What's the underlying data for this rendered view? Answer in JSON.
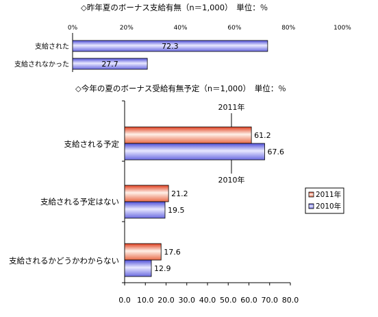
{
  "chart_data": [
    {
      "type": "bar",
      "orientation": "horizontal",
      "title": "◇昨年夏のボーナス支給有無（n＝1,000）　単位：％",
      "categories": [
        "支給された",
        "支給されなかった"
      ],
      "values": [
        72.3,
        27.7
      ],
      "xlim": [
        0,
        100
      ],
      "x_ticks": [
        "0%",
        "20%",
        "40%",
        "60%",
        "80%",
        "100%"
      ],
      "tick_values": [
        0,
        20,
        40,
        60,
        80,
        100
      ],
      "grid": false,
      "colors": {
        "bar_fill": "#8c8cf0",
        "bar_light": "#e0e0ff"
      }
    },
    {
      "type": "bar",
      "orientation": "horizontal",
      "title": "◇今年の夏のボーナス受給有無予定（n＝1,000）　単位：％",
      "categories": [
        "支給される予定",
        "支給される予定はない",
        "支給されるかどうかわからない"
      ],
      "series": [
        {
          "name": "2011年",
          "values": [
            61.2,
            21.2,
            17.6
          ],
          "color": "#f08060"
        },
        {
          "name": "2010年",
          "values": [
            67.6,
            19.5,
            12.9
          ],
          "color": "#8c8cf0"
        }
      ],
      "xlim": [
        0,
        80
      ],
      "x_ticks": [
        "0.0",
        "10.0",
        "20.0",
        "30.0",
        "40.0",
        "50.0",
        "60.0",
        "70.0",
        "80.0"
      ],
      "tick_values": [
        0,
        10,
        20,
        30,
        40,
        50,
        60,
        70,
        80
      ],
      "grid": false,
      "legend": {
        "position": "right",
        "entries": [
          "2011年",
          "2010年"
        ]
      },
      "annotations": [
        "2011年",
        "2010年"
      ]
    }
  ]
}
